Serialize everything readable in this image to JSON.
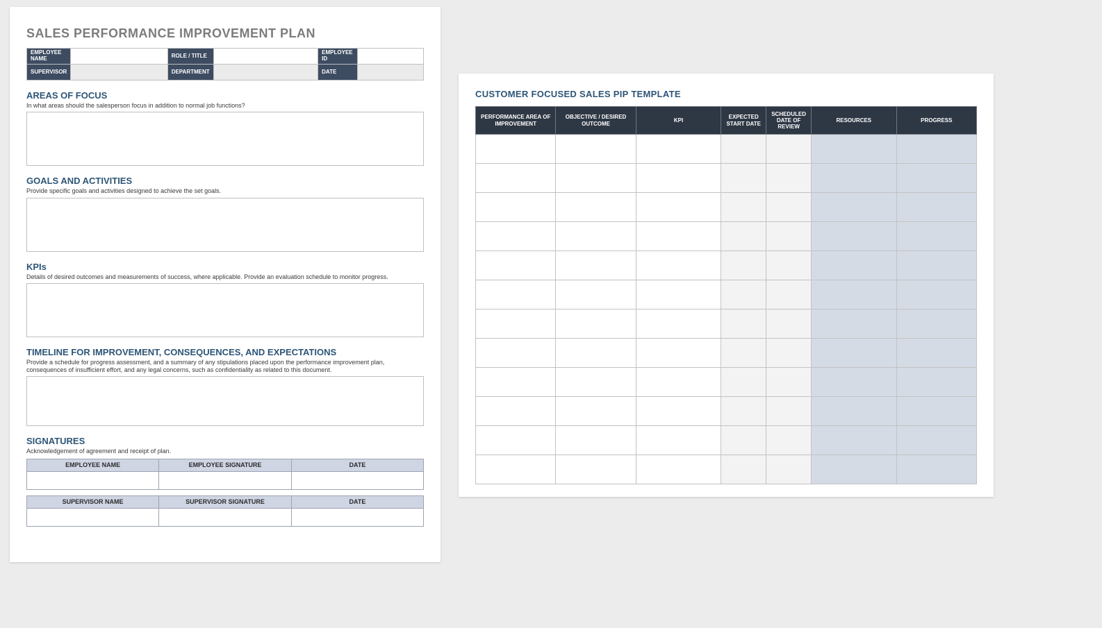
{
  "left": {
    "title": "SALES PERFORMANCE IMPROVEMENT PLAN",
    "info_grid": {
      "row1": [
        "EMPLOYEE NAME",
        "ROLE / TITLE",
        "EMPLOYEE ID"
      ],
      "row2": [
        "SUPERVISOR",
        "DEPARTMENT",
        "DATE"
      ]
    },
    "sections": {
      "areas": {
        "title": "AREAS OF FOCUS",
        "sub": "In what areas should the salesperson focus in addition to normal job functions?"
      },
      "goals": {
        "title": "GOALS AND ACTIVITIES",
        "sub": "Provide specific goals and activities designed to achieve the set goals."
      },
      "kpis": {
        "title": "KPIs",
        "sub": "Details of desired outcomes and measurements of success, where applicable. Provide an evaluation schedule to monitor progress."
      },
      "timeline": {
        "title": "TIMELINE FOR IMPROVEMENT, CONSEQUENCES, AND EXPECTATIONS",
        "sub": "Provide a schedule for progress assessment, and a summary of any stipulations placed upon the performance improvement plan, consequences of insufficient effort, and any legal concerns, such as confidentiality as related to this document."
      },
      "sigs": {
        "title": "SIGNATURES",
        "sub": "Acknowledgement of agreement and receipt of plan."
      }
    },
    "sig_tables": {
      "emp": [
        "EMPLOYEE NAME",
        "EMPLOYEE SIGNATURE",
        "DATE"
      ],
      "sup": [
        "SUPERVISOR NAME",
        "SUPERVISOR SIGNATURE",
        "DATE"
      ]
    },
    "colors": {
      "title_color": "#7c7c7c",
      "section_title_color": "#2d5577",
      "info_label_bg": "#3d4c61",
      "sig_header_bg": "#cfd5e3",
      "border_color": "#bfbfbf"
    }
  },
  "right": {
    "title": "CUSTOMER FOCUSED SALES PIP TEMPLATE",
    "columns": [
      "PERFORMANCE AREA OF IMPROVEMENT",
      "OBJECTIVE / DESIRED OUTCOME",
      "KPI",
      "EXPECTED START DATE",
      "SCHEDULED DATE OF REVIEW",
      "RESOURCES",
      "PROGRESS"
    ],
    "col_widths_pct": [
      16,
      16,
      17,
      9,
      9,
      17,
      16
    ],
    "row_count": 12,
    "colors": {
      "header_bg": "#2e3744",
      "date_col_bg": "#f3f3f3",
      "resource_col_bg": "#d5dbe5",
      "border_color": "#c2c2c2",
      "title_color": "#2d5577"
    }
  },
  "page": {
    "background": "#ececec"
  }
}
